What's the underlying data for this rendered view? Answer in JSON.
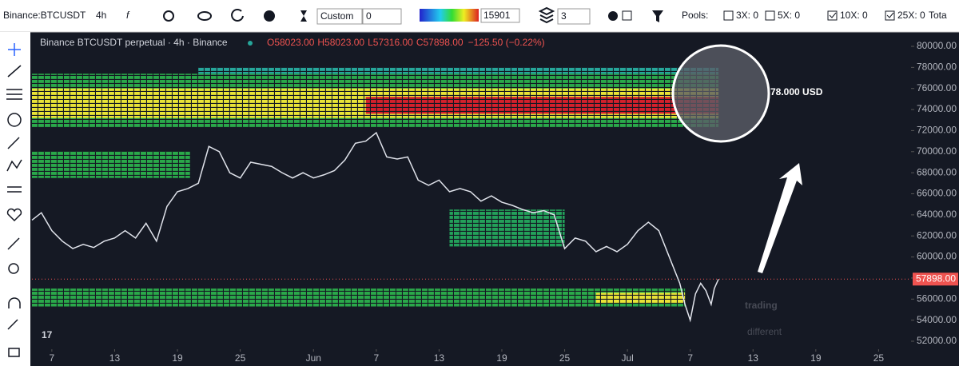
{
  "toolbar": {
    "symbol": "Binance:BTCUSDT",
    "interval": "4h",
    "mode": "Custom",
    "mode_value": "0",
    "gradient_value": "15901",
    "layers": "3",
    "pools": "Pools:",
    "pool_items": [
      "3X: 0",
      "5X: 0",
      "10X: 0",
      "25X: 0",
      "Tota"
    ]
  },
  "chart_data": {
    "type": "line",
    "title": "Binance BTCUSDT perpetual · 4h · Binance",
    "ohlc": [
      "O58023.00",
      "H58023.00",
      "L57316.00",
      "C57898.00"
    ],
    "change": "−125.50 (−0.22%)",
    "annotation": "78.000 USD",
    "last_price": {
      "value": 57898,
      "label": "57898.00"
    },
    "x": [
      4.1,
      5,
      6,
      7,
      8,
      9,
      10,
      11,
      12,
      13,
      14,
      15,
      16,
      17,
      18,
      19,
      20,
      21,
      22,
      23,
      24,
      25,
      26,
      27,
      28,
      29,
      30,
      31,
      32,
      33,
      34,
      35,
      36,
      37,
      38,
      39,
      40,
      41,
      42,
      43,
      44,
      45,
      46,
      47,
      48,
      49,
      50,
      51,
      52,
      53,
      54,
      55,
      56,
      57,
      58,
      59,
      60,
      61,
      62,
      63,
      64,
      65,
      66,
      66.5,
      67,
      67.5,
      68,
      68.5,
      69,
      69.3,
      69.7
    ],
    "values": [
      63500,
      64200,
      62500,
      61500,
      60800,
      61200,
      60900,
      61500,
      61800,
      62500,
      61800,
      63200,
      61500,
      64800,
      66200,
      66500,
      67000,
      70500,
      70000,
      68000,
      67500,
      69000,
      68800,
      68600,
      68000,
      67500,
      68000,
      67500,
      67800,
      68200,
      69200,
      70800,
      71000,
      71800,
      69500,
      69300,
      69500,
      67300,
      66800,
      67300,
      66200,
      66500,
      66200,
      65300,
      65800,
      65200,
      64900,
      64500,
      64200,
      64400,
      64000,
      60800,
      61800,
      61500,
      60500,
      61000,
      60500,
      61200,
      62500,
      63300,
      62500,
      60000,
      57500,
      55500,
      54000,
      56500,
      57500,
      56800,
      55500,
      57000,
      57898
    ],
    "color": "#e0e3eb",
    "heatmap_zones": [
      {
        "x": [
          4.1,
          69.7
        ],
        "y": [
          72300,
          77400
        ],
        "color": "#2aa84a"
      },
      {
        "x": [
          20,
          69.7
        ],
        "y": [
          77400,
          78000
        ],
        "color": "#26a69a"
      },
      {
        "x": [
          4.1,
          69.7
        ],
        "y": [
          73200,
          76000
        ],
        "color": "#e8e337"
      },
      {
        "x": [
          36,
          69.7
        ],
        "y": [
          73600,
          75200
        ],
        "color": "#d4202c"
      },
      {
        "x": [
          4.1,
          19.2
        ],
        "y": [
          67500,
          70000
        ],
        "color": "#2aa84a"
      },
      {
        "x": [
          44,
          55
        ],
        "y": [
          61000,
          64500
        ],
        "color": "#23a05a"
      },
      {
        "x": [
          4.1,
          66.5
        ],
        "y": [
          55300,
          57000
        ],
        "color": "#2aa84a"
      },
      {
        "x": [
          58,
          66.5
        ],
        "y": [
          55600,
          56600
        ],
        "color": "#e8e337"
      }
    ],
    "xlim": [
      4.1,
      88.1
    ],
    "ylim": [
      52000,
      80000
    ],
    "xticks": [
      {
        "value": 6,
        "label": "7"
      },
      {
        "value": 12,
        "label": "13"
      },
      {
        "value": 18,
        "label": "19"
      },
      {
        "value": 24,
        "label": "25"
      },
      {
        "value": 31,
        "label": "Jun"
      },
      {
        "value": 37,
        "label": "7"
      },
      {
        "value": 43,
        "label": "13"
      },
      {
        "value": 49,
        "label": "19"
      },
      {
        "value": 55,
        "label": "25"
      },
      {
        "value": 61,
        "label": "Jul"
      },
      {
        "value": 67,
        "label": "7"
      },
      {
        "value": 73,
        "label": "13"
      },
      {
        "value": 79,
        "label": "19"
      },
      {
        "value": 85,
        "label": "25"
      }
    ],
    "yticks": [
      {
        "value": 52000,
        "label": "52000.00"
      },
      {
        "value": 54000,
        "label": "54000.00"
      },
      {
        "value": 56000,
        "label": "56000.00"
      },
      {
        "value": 58000,
        "label": "58000.00"
      },
      {
        "value": 60000,
        "label": "60000.00"
      },
      {
        "value": 62000,
        "label": "62000.00"
      },
      {
        "value": 64000,
        "label": "64000.00"
      },
      {
        "value": 66000,
        "label": "66000.00"
      },
      {
        "value": 68000,
        "label": "68000.00"
      },
      {
        "value": 70000,
        "label": "70000.00"
      },
      {
        "value": 72000,
        "label": "72000.00"
      },
      {
        "value": 74000,
        "label": "74000.00"
      },
      {
        "value": 76000,
        "label": "76000.00"
      },
      {
        "value": 78000,
        "label": "78000.00"
      },
      {
        "value": 80000,
        "label": "80000.00"
      }
    ]
  }
}
